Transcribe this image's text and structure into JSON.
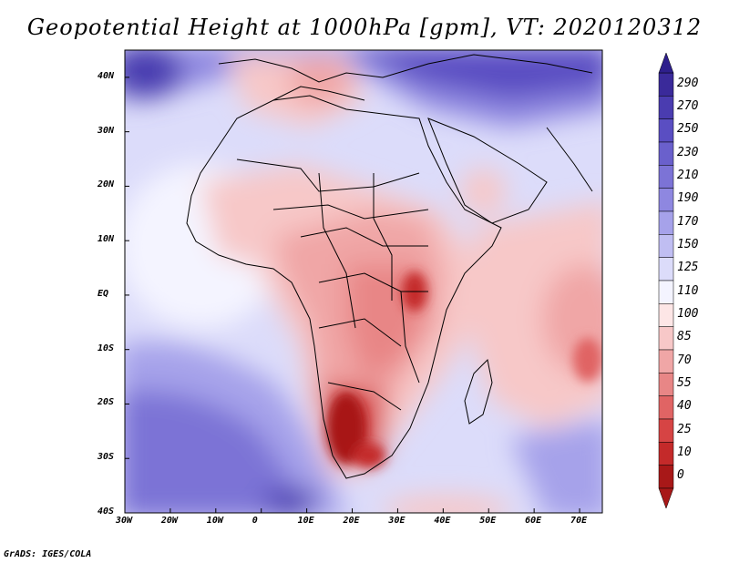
{
  "title": "Geopotential Height at 1000hPa [gpm], VT: 2020120312",
  "credit": "GrADS: IGES/COLA",
  "map": {
    "lon_range": [
      -30,
      75
    ],
    "lat_range": [
      -40,
      45
    ],
    "lon_ticks": [
      "30W",
      "20W",
      "10W",
      "0",
      "10E",
      "20E",
      "30E",
      "40E",
      "50E",
      "60E",
      "70E"
    ],
    "lat_ticks": [
      "40N",
      "30N",
      "20N",
      "10N",
      "EQ",
      "10S",
      "20S",
      "30S",
      "40S"
    ]
  },
  "colorbar": {
    "labels": [
      "290",
      "270",
      "250",
      "230",
      "210",
      "190",
      "170",
      "150",
      "125",
      "110",
      "100",
      "85",
      "70",
      "55",
      "40",
      "25",
      "10",
      "0"
    ],
    "colors": [
      "#3a2a9a",
      "#4a3cb0",
      "#5a4ec2",
      "#6a60cc",
      "#7c73d6",
      "#8e87e0",
      "#a6a2ea",
      "#c0bef2",
      "#dcdcfa",
      "#f4f4ff",
      "#fde6e6",
      "#f7c8c8",
      "#f0a6a6",
      "#e88686",
      "#e06464",
      "#d64444",
      "#c42a2a",
      "#a81818"
    ],
    "end_low_color": "#a81818",
    "end_high_color": "#2e1f8c"
  }
}
